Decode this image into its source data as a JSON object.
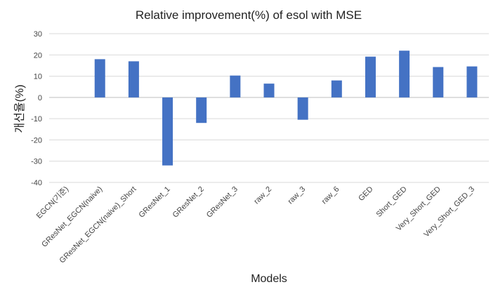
{
  "chart_data": {
    "type": "bar",
    "title": "Relative improvement(%) of esol with MSE",
    "xlabel": "Models",
    "ylabel": "개선율(%)",
    "ylim": [
      -40,
      30
    ],
    "yticks": [
      30,
      20,
      10,
      0,
      -10,
      -20,
      -30,
      -40
    ],
    "grid": true,
    "legend": "none",
    "color": "#4472C4",
    "categories": [
      "EGCN(기준)",
      "GResNet_EGCN(naive)",
      "GResNet_EGCN(naive)_Short",
      "GResNet_1",
      "GResNet_2",
      "GResNet_3",
      "raw_2",
      "raw_3",
      "raw_6",
      "GED",
      "Short_GED",
      "Very_Short_GED",
      "Very_Short_GED_3"
    ],
    "values": [
      0,
      18,
      17,
      -32,
      -12,
      10.3,
      6.5,
      -10.5,
      8,
      19.2,
      22,
      14.3,
      14.6
    ]
  }
}
